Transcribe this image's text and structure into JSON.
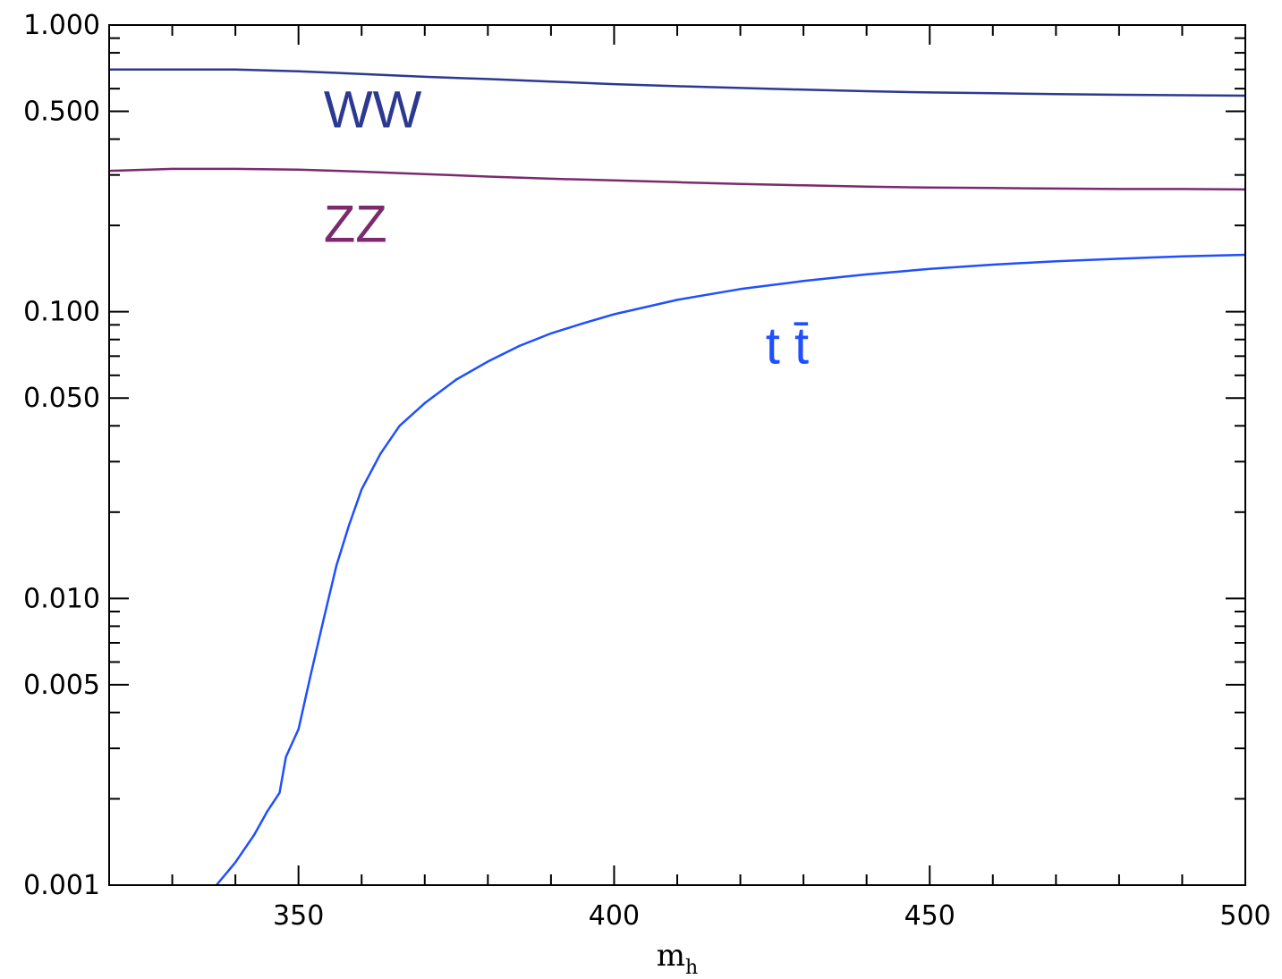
{
  "chart_data": {
    "type": "line",
    "title": "",
    "xlabel": "m",
    "xlabel_sub": "h",
    "ylabel": "",
    "xlim": [
      320,
      500
    ],
    "ylim": [
      0.001,
      1.0
    ],
    "y_scale": "log",
    "grid": false,
    "x_ticks": [
      350,
      400,
      450,
      500
    ],
    "x_tick_labels": [
      "350",
      "400",
      "450",
      "500"
    ],
    "y_ticks": [
      0.001,
      0.005,
      0.01,
      0.05,
      0.1,
      0.5,
      1.0
    ],
    "y_tick_labels": [
      "0.001",
      "0.005",
      "0.010",
      "0.050",
      "0.100",
      "0.500",
      "1.000"
    ],
    "series": [
      {
        "name": "WW",
        "color": "#2b3990",
        "x": [
          320,
          330,
          340,
          350,
          360,
          370,
          380,
          390,
          400,
          410,
          420,
          430,
          440,
          450,
          460,
          470,
          480,
          490,
          500
        ],
        "y": [
          0.7,
          0.7,
          0.7,
          0.69,
          0.675,
          0.66,
          0.648,
          0.635,
          0.622,
          0.612,
          0.603,
          0.595,
          0.588,
          0.582,
          0.578,
          0.574,
          0.571,
          0.569,
          0.567
        ]
      },
      {
        "name": "ZZ",
        "color": "#7b2a6e",
        "x": [
          320,
          330,
          340,
          350,
          360,
          370,
          380,
          390,
          400,
          410,
          420,
          430,
          440,
          450,
          460,
          470,
          480,
          490,
          500
        ],
        "y": [
          0.31,
          0.315,
          0.315,
          0.313,
          0.308,
          0.302,
          0.296,
          0.291,
          0.287,
          0.283,
          0.279,
          0.276,
          0.273,
          0.271,
          0.27,
          0.269,
          0.268,
          0.268,
          0.267
        ]
      },
      {
        "name": "t t̄",
        "color": "#1f4fff",
        "x": [
          337,
          340,
          343,
          345,
          347,
          348,
          350,
          352,
          354,
          356,
          358,
          360,
          363,
          366,
          370,
          375,
          380,
          385,
          390,
          395,
          400,
          410,
          420,
          430,
          440,
          450,
          460,
          470,
          480,
          490,
          500
        ],
        "y": [
          0.001,
          0.0012,
          0.0015,
          0.0018,
          0.0021,
          0.0028,
          0.0035,
          0.0055,
          0.0085,
          0.013,
          0.018,
          0.024,
          0.032,
          0.04,
          0.048,
          0.058,
          0.067,
          0.076,
          0.084,
          0.091,
          0.098,
          0.11,
          0.12,
          0.128,
          0.135,
          0.141,
          0.146,
          0.15,
          0.153,
          0.156,
          0.158
        ]
      }
    ],
    "annotations": [
      {
        "text": "WW",
        "series": 0,
        "x": 354,
        "y": 0.44
      },
      {
        "text": "ZZ",
        "series": 1,
        "x": 354,
        "y": 0.175
      },
      {
        "text": "t t̄",
        "series": 2,
        "x": 424,
        "y": 0.066
      }
    ]
  }
}
